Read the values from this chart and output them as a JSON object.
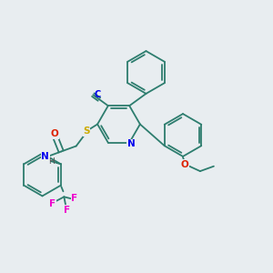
{
  "background_color": "#e8edf0",
  "bond_color": "#2d7d6e",
  "atom_colors": {
    "N": "#0000ee",
    "O": "#dd2200",
    "S": "#ccaa00",
    "F": "#ee00cc",
    "H": "#555555"
  },
  "figsize": [
    3.0,
    3.0
  ],
  "dpi": 100
}
